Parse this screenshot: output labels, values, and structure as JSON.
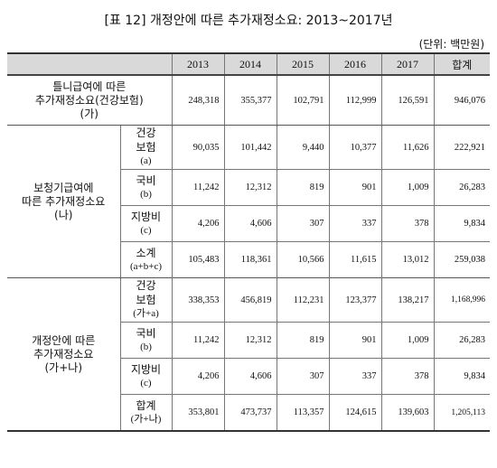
{
  "title": "[표 12] 개정안에 따른 추가재정소요: 2013~2017년",
  "unit": "(단위: 백만원)",
  "headers": [
    "2013",
    "2014",
    "2015",
    "2016",
    "2017",
    "합계"
  ],
  "rows": {
    "r1": {
      "label_line1": "틀니급여에 따른",
      "label_line2": "추가재정소요(건강보험)",
      "label_line3": "(가)",
      "values": [
        "248,318",
        "355,377",
        "102,791",
        "112,999",
        "126,591",
        "946,076"
      ]
    },
    "g2": {
      "label_line1": "보청기급여에",
      "label_line2": "따른 추가재정소요",
      "label_line3": "(나)",
      "rows": [
        {
          "sub1": "건강",
          "sub2": "보험",
          "sub3": "(a)",
          "values": [
            "90,035",
            "101,442",
            "9,440",
            "10,377",
            "11,626",
            "222,921"
          ]
        },
        {
          "sub1": "국비",
          "sub2": "(b)",
          "values": [
            "11,242",
            "12,312",
            "819",
            "901",
            "1,009",
            "26,283"
          ]
        },
        {
          "sub1": "지방비",
          "sub2": "(c)",
          "values": [
            "4,206",
            "4,606",
            "307",
            "337",
            "378",
            "9,834"
          ]
        },
        {
          "sub1": "소계",
          "sub2": "(a+b+c)",
          "values": [
            "105,483",
            "118,361",
            "10,566",
            "11,615",
            "13,012",
            "259,038"
          ]
        }
      ]
    },
    "g3": {
      "label_line1": "개정안에 따른",
      "label_line2": "추가재정소요",
      "label_line3": "(가+나)",
      "rows": [
        {
          "sub1": "건강",
          "sub2": "보험",
          "sub3": "(가+a)",
          "values": [
            "338,353",
            "456,819",
            "112,231",
            "123,377",
            "138,217",
            "1,168,996"
          ]
        },
        {
          "sub1": "국비",
          "sub2": "(b)",
          "values": [
            "11,242",
            "12,312",
            "819",
            "901",
            "1,009",
            "26,283"
          ]
        },
        {
          "sub1": "지방비",
          "sub2": "(c)",
          "values": [
            "4,206",
            "4,606",
            "307",
            "337",
            "378",
            "9,834"
          ]
        },
        {
          "sub1": "합계",
          "sub2": "(가+나)",
          "values": [
            "353,801",
            "473,737",
            "113,357",
            "124,615",
            "139,603",
            "1,205,113"
          ]
        }
      ]
    }
  }
}
